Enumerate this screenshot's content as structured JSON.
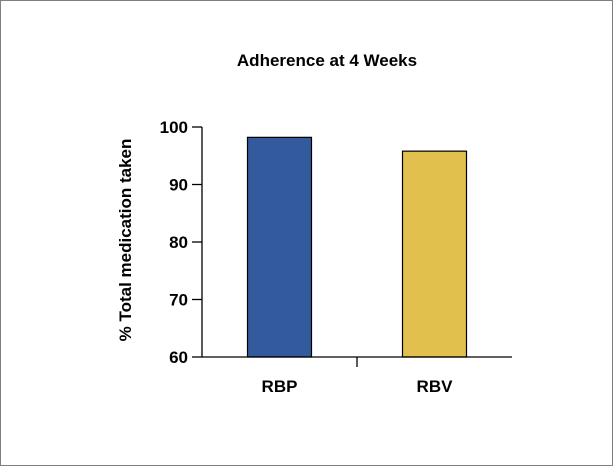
{
  "chart_data": {
    "type": "bar",
    "title": "Adherence at 4 Weeks",
    "xlabel": "",
    "ylabel": "% Total medication taken",
    "categories": [
      "RBP",
      "RBV"
    ],
    "values": [
      98.2,
      95.8
    ],
    "colors": [
      "#335a9c",
      "#e2c04e"
    ],
    "ylim": [
      60,
      100
    ],
    "yticks": [
      60,
      70,
      80,
      90,
      100
    ],
    "ytick_labels": [
      "60",
      "70",
      "80",
      "90",
      "100"
    ],
    "grid": false,
    "legend": "none"
  }
}
